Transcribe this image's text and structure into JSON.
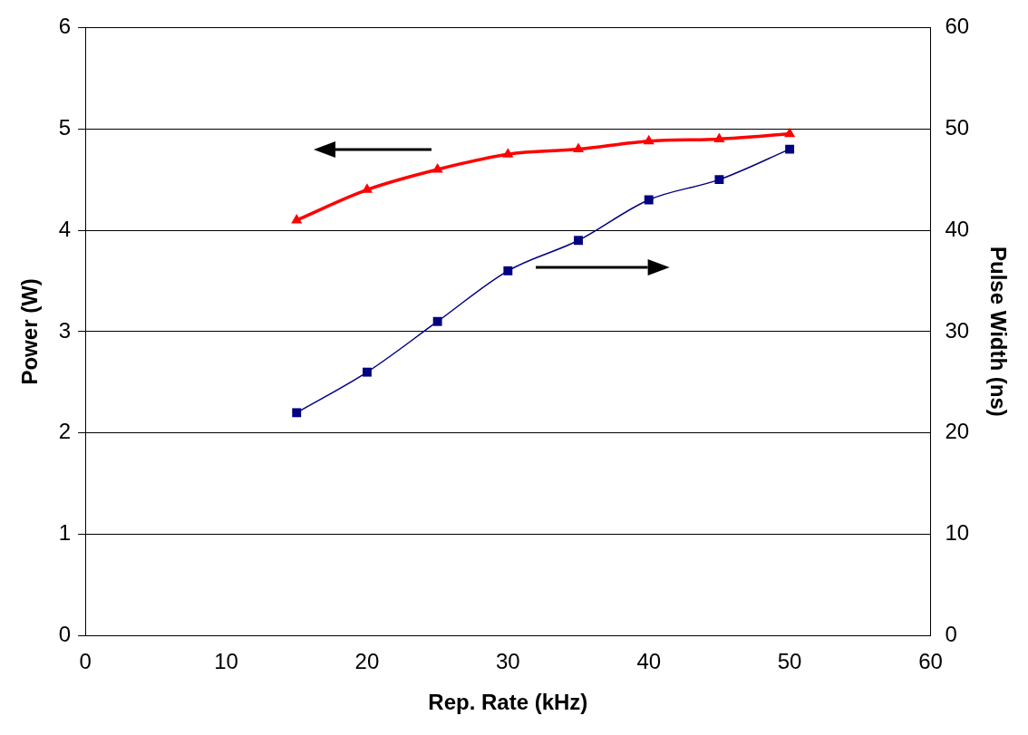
{
  "chart_data": {
    "type": "line",
    "xlabel": "Rep. Rate (kHz)",
    "ylabel": "Power (W)",
    "y2label": "Pulse Width (ns)",
    "x": [
      15,
      20,
      25,
      30,
      35,
      40,
      45,
      50
    ],
    "series": [
      {
        "color": "#ff0000",
        "values": [
          4.1,
          4.4,
          4.6,
          4.75,
          4.8,
          4.88,
          4.9,
          4.95
        ],
        "marker": "triangle",
        "axis": "y"
      },
      {
        "color": "#000080",
        "values": [
          22,
          26,
          31,
          36,
          39,
          43,
          45,
          48
        ],
        "marker": "square",
        "axis": "y2"
      }
    ],
    "xlim": [
      0,
      60
    ],
    "xticks": [
      0,
      10,
      20,
      30,
      40,
      50,
      60
    ],
    "ylim": [
      0,
      6
    ],
    "yticks": [
      0,
      1,
      2,
      3,
      4,
      5,
      6
    ],
    "y2lim": [
      0,
      60
    ],
    "y2ticks": [
      0,
      10,
      20,
      30,
      40,
      50,
      60
    ],
    "grid": "y",
    "legend": false,
    "line_style": "solid"
  }
}
